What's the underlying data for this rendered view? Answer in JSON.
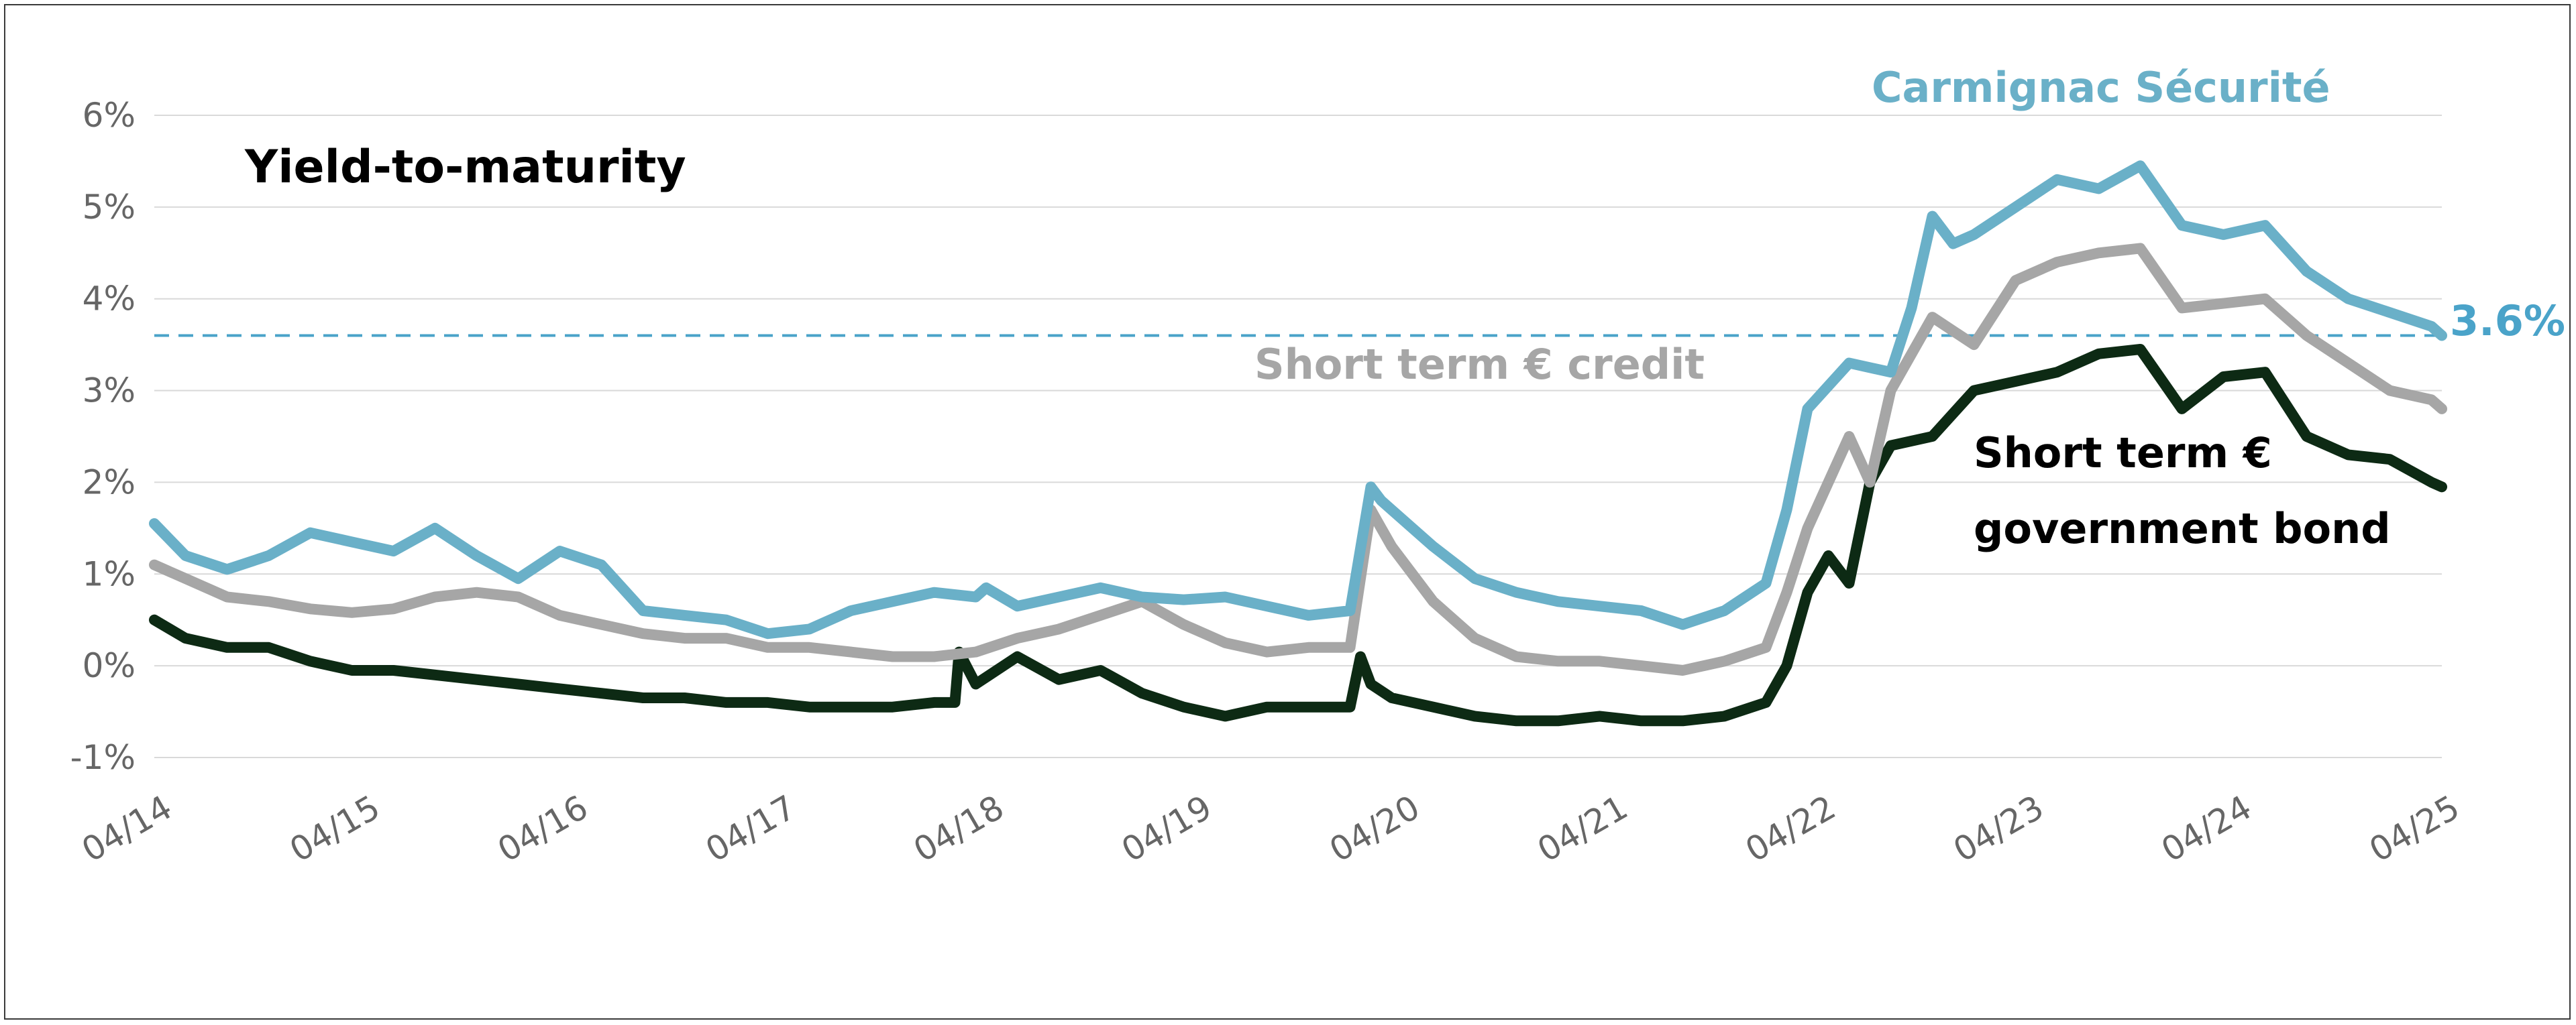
{
  "chart_data": {
    "type": "line",
    "title": "Yield-to-maturity",
    "xlabel": "",
    "ylabel": "",
    "ylim": [
      -1,
      6
    ],
    "yticks": [
      -1,
      0,
      1,
      2,
      3,
      4,
      5,
      6
    ],
    "ytick_labels": [
      "-1%",
      "0%",
      "1%",
      "2%",
      "3%",
      "4%",
      "5%",
      "6%"
    ],
    "xlim": [
      2014.25,
      2025.25
    ],
    "xtick_labels": [
      "04/14",
      "04/15",
      "04/16",
      "04/17",
      "04/18",
      "04/19",
      "04/20",
      "04/21",
      "04/22",
      "04/23",
      "04/24",
      "04/25"
    ],
    "grid": true,
    "reference_line": {
      "value": 3.6,
      "label": "3.6%",
      "color": "#4aa3c9",
      "style": "dashed"
    },
    "series": [
      {
        "name": "Carmignac Sécurité",
        "color": "#6ab0c8",
        "x": [
          2014.25,
          2014.4,
          2014.6,
          2014.8,
          2015.0,
          2015.2,
          2015.4,
          2015.6,
          2015.8,
          2016.0,
          2016.2,
          2016.4,
          2016.6,
          2016.8,
          2017.0,
          2017.2,
          2017.4,
          2017.6,
          2017.8,
          2018.0,
          2018.2,
          2018.25,
          2018.4,
          2018.6,
          2018.8,
          2019.0,
          2019.2,
          2019.4,
          2019.6,
          2019.8,
          2020.0,
          2020.1,
          2020.15,
          2020.2,
          2020.4,
          2020.6,
          2020.8,
          2021.0,
          2021.2,
          2021.4,
          2021.6,
          2021.8,
          2022.0,
          2022.1,
          2022.2,
          2022.4,
          2022.6,
          2022.7,
          2022.8,
          2022.9,
          2023.0,
          2023.2,
          2023.4,
          2023.6,
          2023.8,
          2024.0,
          2024.2,
          2024.4,
          2024.6,
          2024.8,
          2025.0,
          2025.2,
          2025.25
        ],
        "y": [
          1.55,
          1.2,
          1.05,
          1.2,
          1.45,
          1.35,
          1.25,
          1.5,
          1.2,
          0.95,
          1.25,
          1.1,
          0.6,
          0.55,
          0.5,
          0.35,
          0.4,
          0.6,
          0.7,
          0.8,
          0.75,
          0.85,
          0.65,
          0.75,
          0.85,
          0.75,
          0.72,
          0.75,
          0.65,
          0.55,
          0.6,
          1.95,
          1.8,
          1.7,
          1.3,
          0.95,
          0.8,
          0.7,
          0.65,
          0.6,
          0.45,
          0.6,
          0.9,
          1.7,
          2.8,
          3.3,
          3.2,
          3.9,
          4.9,
          4.6,
          4.7,
          5.0,
          5.3,
          5.2,
          5.45,
          4.8,
          4.7,
          4.8,
          4.3,
          4.0,
          3.85,
          3.7,
          3.6
        ]
      },
      {
        "name": "Short term € credit",
        "color": "#a6a6a6",
        "x": [
          2014.25,
          2014.4,
          2014.6,
          2014.8,
          2015.0,
          2015.2,
          2015.4,
          2015.6,
          2015.8,
          2016.0,
          2016.2,
          2016.4,
          2016.6,
          2016.8,
          2017.0,
          2017.2,
          2017.4,
          2017.6,
          2017.8,
          2018.0,
          2018.2,
          2018.4,
          2018.6,
          2018.8,
          2019.0,
          2019.2,
          2019.4,
          2019.6,
          2019.8,
          2020.0,
          2020.1,
          2020.15,
          2020.2,
          2020.4,
          2020.6,
          2020.8,
          2021.0,
          2021.2,
          2021.4,
          2021.6,
          2021.8,
          2022.0,
          2022.1,
          2022.2,
          2022.4,
          2022.5,
          2022.6,
          2022.8,
          2023.0,
          2023.2,
          2023.4,
          2023.6,
          2023.8,
          2024.0,
          2024.2,
          2024.4,
          2024.6,
          2024.8,
          2025.0,
          2025.2,
          2025.25
        ],
        "y": [
          1.1,
          0.95,
          0.75,
          0.7,
          0.62,
          0.58,
          0.62,
          0.75,
          0.8,
          0.75,
          0.55,
          0.45,
          0.35,
          0.3,
          0.3,
          0.2,
          0.2,
          0.15,
          0.1,
          0.1,
          0.15,
          0.3,
          0.4,
          0.55,
          0.7,
          0.45,
          0.25,
          0.15,
          0.2,
          0.2,
          1.7,
          1.5,
          1.3,
          0.7,
          0.3,
          0.1,
          0.05,
          0.05,
          0.0,
          -0.05,
          0.05,
          0.2,
          0.8,
          1.5,
          2.5,
          2.0,
          3.0,
          3.8,
          3.5,
          4.2,
          4.4,
          4.5,
          4.55,
          3.9,
          3.95,
          4.0,
          3.6,
          3.3,
          3.0,
          2.9,
          2.8
        ]
      },
      {
        "name": "Short term € government bond",
        "color": "#0d2a14",
        "x": [
          2014.25,
          2014.4,
          2014.6,
          2014.8,
          2015.0,
          2015.2,
          2015.4,
          2015.6,
          2015.8,
          2016.0,
          2016.2,
          2016.4,
          2016.6,
          2016.8,
          2017.0,
          2017.2,
          2017.4,
          2017.6,
          2017.8,
          2018.0,
          2018.1,
          2018.12,
          2018.2,
          2018.4,
          2018.6,
          2018.8,
          2019.0,
          2019.2,
          2019.4,
          2019.6,
          2019.8,
          2020.0,
          2020.05,
          2020.1,
          2020.2,
          2020.4,
          2020.6,
          2020.8,
          2021.0,
          2021.2,
          2021.4,
          2021.6,
          2021.8,
          2022.0,
          2022.1,
          2022.2,
          2022.3,
          2022.4,
          2022.5,
          2022.6,
          2022.8,
          2023.0,
          2023.2,
          2023.4,
          2023.6,
          2023.8,
          2024.0,
          2024.2,
          2024.4,
          2024.6,
          2024.8,
          2025.0,
          2025.2,
          2025.25
        ],
        "y": [
          0.5,
          0.3,
          0.2,
          0.2,
          0.05,
          -0.05,
          -0.05,
          -0.1,
          -0.15,
          -0.2,
          -0.25,
          -0.3,
          -0.35,
          -0.35,
          -0.4,
          -0.4,
          -0.45,
          -0.45,
          -0.45,
          -0.4,
          -0.4,
          0.15,
          -0.2,
          0.1,
          -0.15,
          -0.05,
          -0.3,
          -0.45,
          -0.55,
          -0.45,
          -0.45,
          -0.45,
          0.1,
          -0.2,
          -0.35,
          -0.45,
          -0.55,
          -0.6,
          -0.6,
          -0.55,
          -0.6,
          -0.6,
          -0.55,
          -0.4,
          0.0,
          0.8,
          1.2,
          0.9,
          2.0,
          2.4,
          2.5,
          3.0,
          3.1,
          3.2,
          3.4,
          3.45,
          2.8,
          3.15,
          3.2,
          2.5,
          2.3,
          2.25,
          2.0,
          1.95
        ]
      }
    ],
    "annotations": [
      "Carmignac Sécurité",
      "Short term € credit",
      "Short term € government bond",
      "3.6%"
    ]
  },
  "labels": {
    "title": "Yield-to-maturity",
    "carmignac": "Carmignac Sécurité",
    "credit": "Short term € credit",
    "gov_line1": "Short term €",
    "gov_line2": "government bond",
    "ref_value": "3.6%"
  }
}
